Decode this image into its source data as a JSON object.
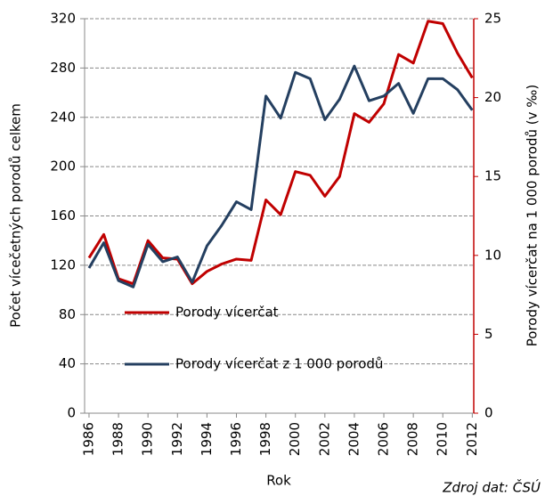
{
  "chart_data": {
    "type": "line",
    "x": [
      1986,
      1987,
      1988,
      1989,
      1990,
      1991,
      1992,
      1993,
      1994,
      1995,
      1996,
      1997,
      1998,
      1999,
      2000,
      2001,
      2002,
      2003,
      2004,
      2005,
      2006,
      2007,
      2008,
      2009,
      2010,
      2011,
      2012
    ],
    "series": [
      {
        "name": "Porody vícerčat",
        "color": "#c00000",
        "values": [
          126,
          145,
          109,
          105,
          140,
          126,
          125,
          105,
          115,
          121,
          125,
          124,
          173,
          161,
          196,
          193,
          176,
          192,
          243,
          236,
          251,
          291,
          284,
          318,
          316,
          292,
          272
        ]
      },
      {
        "name": "Porody vícerčat z 1 000 porodů",
        "color": "#243f60",
        "axis": "y2",
        "values": [
          9.2,
          10.8,
          8.4,
          8.0,
          10.7,
          9.6,
          9.9,
          8.3,
          10.6,
          11.9,
          13.4,
          12.9,
          20.1,
          18.7,
          21.6,
          21.2,
          18.6,
          19.9,
          22.0,
          19.8,
          20.1,
          20.9,
          19.0,
          21.2,
          21.2,
          20.5,
          19.2
        ]
      }
    ],
    "xlim": [
      1985.7,
      2012.1
    ],
    "xticks": [
      1986,
      1988,
      1990,
      1992,
      1994,
      1996,
      1998,
      2000,
      2002,
      2004,
      2006,
      2008,
      2010,
      2012
    ],
    "ylim": [
      0,
      320
    ],
    "yticks": [
      0,
      40,
      80,
      120,
      160,
      200,
      240,
      280,
      320
    ],
    "y2lim": [
      0,
      25
    ],
    "y2ticks": [
      0,
      5,
      10,
      15,
      20,
      25
    ],
    "ylabel": "Počet vícečetných porodů celkem",
    "y2label": "Porody vícerčat na 1 000 porodů (v ‰)",
    "xlabel": "Rok",
    "source": "Zdroj dat: ČSÚ",
    "grid": true,
    "legend": "lower left",
    "y2_axis_color": "#c00000"
  }
}
